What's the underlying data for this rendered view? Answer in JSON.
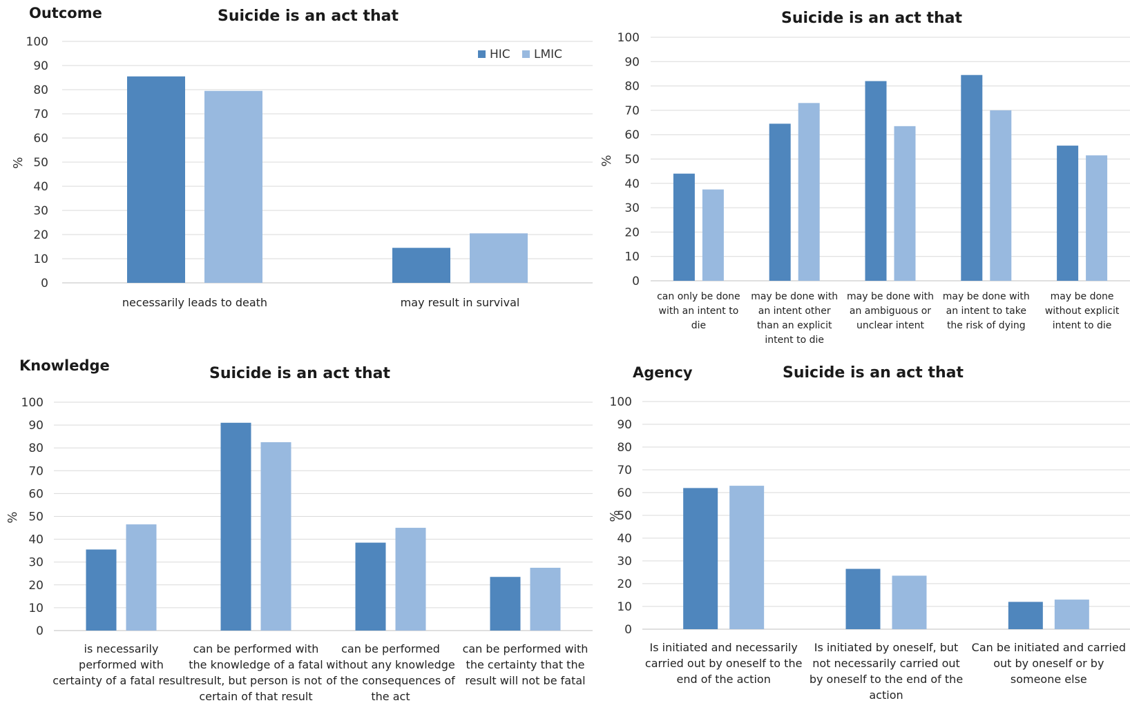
{
  "colors": {
    "HIC": "#4f86bd",
    "LMIC": "#98b9df"
  },
  "legend": [
    "HIC",
    "LMIC"
  ],
  "y_axis": {
    "label": "%",
    "ticks": [
      "0",
      "10",
      "20",
      "30",
      "40",
      "50",
      "60",
      "70",
      "80",
      "90",
      "100"
    ]
  },
  "chart_data": [
    {
      "type": "bar",
      "section": "Outcome",
      "title": "Suicide is an act that",
      "ylabel": "%",
      "ylim": [
        0,
        100
      ],
      "grid": true,
      "legend_position": "top-right",
      "categories": [
        [
          "necessarily leads to death"
        ],
        [
          "may result in survival"
        ]
      ],
      "series": [
        {
          "name": "HIC",
          "values": [
            85.5,
            14.5
          ]
        },
        {
          "name": "LMIC",
          "values": [
            79.5,
            20.5
          ]
        }
      ]
    },
    {
      "type": "bar",
      "section": "",
      "title": "Suicide is an act that",
      "ylabel": "%",
      "ylim": [
        0,
        100
      ],
      "grid": true,
      "categories": [
        [
          "can only be done",
          "with an intent to",
          "die"
        ],
        [
          "may be done with",
          "an intent other",
          "than an explicit",
          "intent to die"
        ],
        [
          "may be done with",
          "an ambiguous or",
          "unclear intent"
        ],
        [
          "may be done with",
          "an intent to take",
          "the risk of dying"
        ],
        [
          "may be done",
          "without explicit",
          "intent to die"
        ]
      ],
      "series": [
        {
          "name": "HIC",
          "values": [
            44,
            64.5,
            82,
            84.5,
            55.5
          ]
        },
        {
          "name": "LMIC",
          "values": [
            37.5,
            73,
            63.5,
            70,
            51.5
          ]
        }
      ]
    },
    {
      "type": "bar",
      "section": "Knowledge",
      "title": "Suicide is an act that",
      "ylabel": "%",
      "ylim": [
        0,
        100
      ],
      "grid": true,
      "categories": [
        [
          "is necessarily",
          "performed with",
          "certainty of a fatal result"
        ],
        [
          "can be  performed with",
          "the knowledge of a fatal",
          "result, but person is not",
          "certain of that result"
        ],
        [
          "can be  performed",
          "without any knowledge",
          "of the consequences of",
          "the act"
        ],
        [
          "can be performed with",
          "the certainty that the",
          "result will not be fatal"
        ]
      ],
      "series": [
        {
          "name": "HIC",
          "values": [
            35.5,
            91,
            38.5,
            23.5
          ]
        },
        {
          "name": "LMIC",
          "values": [
            46.5,
            82.5,
            45,
            27.5
          ]
        }
      ]
    },
    {
      "type": "bar",
      "section": "Agency",
      "title": "Suicide is an act that",
      "ylabel": "%",
      "ylim": [
        0,
        100
      ],
      "grid": true,
      "categories": [
        [
          "Is initiated and necessarily",
          "carried out by oneself to the",
          "end of the action"
        ],
        [
          "Is initiated by oneself, but",
          "not necessarily carried out",
          "by oneself to the end of the",
          "action"
        ],
        [
          "Can be initiated and carried",
          "out by oneself or by",
          "someone else"
        ]
      ],
      "series": [
        {
          "name": "HIC",
          "values": [
            62,
            26.5,
            12
          ]
        },
        {
          "name": "LMIC",
          "values": [
            63,
            23.5,
            13
          ]
        }
      ]
    }
  ]
}
